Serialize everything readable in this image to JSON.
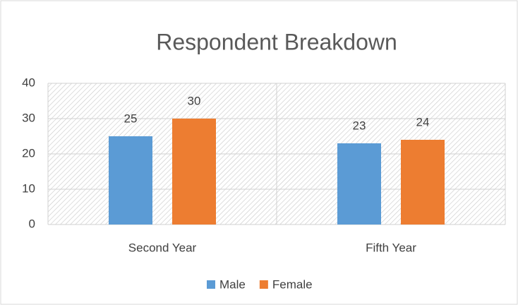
{
  "chart_data": {
    "type": "bar",
    "title": "Respondent Breakdown",
    "categories": [
      "Second Year",
      "Fifth Year"
    ],
    "series": [
      {
        "name": "Male",
        "color": "#5b9bd5",
        "values": [
          25,
          23
        ]
      },
      {
        "name": "Female",
        "color": "#ed7d31",
        "values": [
          30,
          24
        ]
      }
    ],
    "ylim": [
      0,
      40
    ],
    "yticks": [
      0,
      10,
      20,
      30,
      40
    ],
    "grid": true,
    "legend": "bottom"
  }
}
